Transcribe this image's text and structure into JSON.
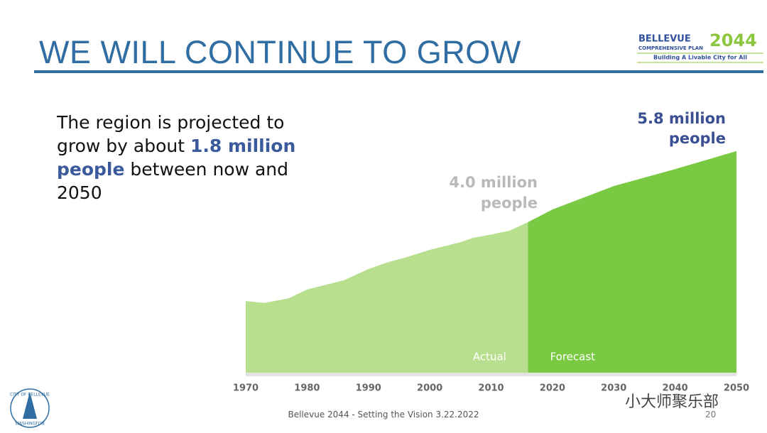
{
  "header": {
    "title": "WE WILL CONTINUE TO GROW",
    "logo": {
      "name": "BELLEVUE",
      "year": "2044",
      "plan": "COMPREHENSIVE PLAN",
      "tagline": "Building A Livable City for All"
    }
  },
  "body": [
    "The region is projected to grow by about ",
    "1.8 million people",
    " between now and 2050"
  ],
  "seal": [
    "CITY OF BELLEVUE",
    "WASHINGTON"
  ],
  "footer": {
    "text": "Bellevue 2044 - Setting the Vision 3.22.2022",
    "page": "20"
  },
  "watermark": "小大师聚乐部",
  "chart_data": {
    "type": "area",
    "annotations": [
      [
        "4.0 million",
        "people"
      ],
      [
        "5.8 million",
        "people"
      ]
    ],
    "series": [
      {
        "name": "Actual",
        "color": "#b8df8e",
        "x": [
          1970,
          1973,
          1977,
          1980,
          1983,
          1986,
          1990,
          1993,
          1996,
          2000,
          2005,
          2007,
          2010,
          2013,
          2016
        ],
        "values": [
          1.9,
          1.85,
          1.97,
          2.2,
          2.32,
          2.44,
          2.73,
          2.9,
          3.03,
          3.23,
          3.43,
          3.54,
          3.63,
          3.73,
          3.95
        ]
      },
      {
        "name": "Forecast",
        "color": "#7ac943",
        "x": [
          2016,
          2020,
          2030,
          2040,
          2050
        ],
        "values": [
          3.95,
          4.28,
          4.89,
          5.33,
          5.8
        ]
      }
    ],
    "xlim": [
      1970,
      2050
    ],
    "xticks": [
      1970,
      1980,
      1990,
      2000,
      2010,
      2020,
      2030,
      2040,
      2050
    ],
    "ylim": [
      0,
      6
    ]
  }
}
